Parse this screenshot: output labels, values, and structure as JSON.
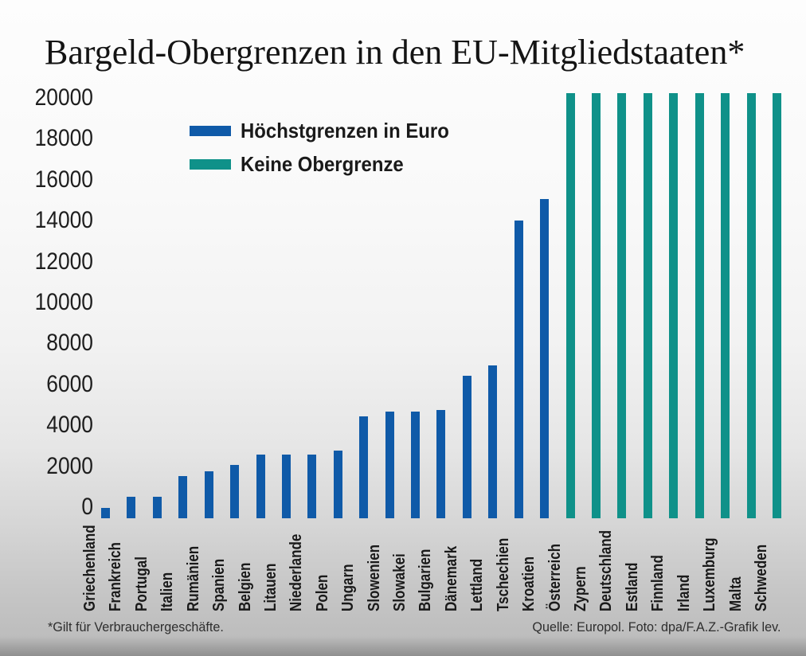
{
  "title": "Bargeld-Obergrenzen in den EU-Mitgliedstaaten*",
  "legend": [
    {
      "label": "Höchstgrenzen in Euro",
      "color": "#0f5aa8",
      "meaning": "limit"
    },
    {
      "label": "Keine Obergrenze",
      "color": "#0f9189",
      "meaning": "nolimit"
    }
  ],
  "footnote": "*Gilt für Verbrauchergeschäfte.",
  "source": "Quelle: Europol. Foto: dpa/F.A.Z.-Grafik lev.",
  "chart_data": {
    "type": "bar",
    "title": "Bargeld-Obergrenzen in den EU-Mitgliedstaaten*",
    "xlabel": "",
    "ylabel": "",
    "ylim": [
      0,
      20000
    ],
    "yticks": [
      0,
      2000,
      4000,
      6000,
      8000,
      10000,
      12000,
      14000,
      16000,
      18000,
      20000
    ],
    "grid": false,
    "legend_position": "top-left",
    "categories": [
      "Griechenland",
      "Frankreich",
      "Portugal",
      "Italien",
      "Rumänien",
      "Spanien",
      "Belgien",
      "Litauen",
      "Niederlande",
      "Polen",
      "Ungarn",
      "Slowenien",
      "Slowakei",
      "Bulgarien",
      "Dänemark",
      "Lettland",
      "Tschechien",
      "Kroatien",
      "Österreich",
      "Zypern",
      "Deutschland",
      "Estland",
      "Finnland",
      "Irland",
      "Luxemburg",
      "Malta",
      "Schweden"
    ],
    "values": [
      500,
      1000,
      1000,
      2000,
      2200,
      2500,
      3000,
      3000,
      3000,
      3200,
      4800,
      5000,
      5000,
      5100,
      6700,
      7200,
      14000,
      15000,
      20000,
      20000,
      20000,
      20000,
      20000,
      20000,
      20000,
      20000,
      20000
    ],
    "bar_type": [
      "limit",
      "limit",
      "limit",
      "limit",
      "limit",
      "limit",
      "limit",
      "limit",
      "limit",
      "limit",
      "limit",
      "limit",
      "limit",
      "limit",
      "limit",
      "limit",
      "limit",
      "limit",
      "nolimit",
      "nolimit",
      "nolimit",
      "nolimit",
      "nolimit",
      "nolimit",
      "nolimit",
      "nolimit",
      "nolimit"
    ],
    "colors": {
      "limit": "#0f5aa8",
      "nolimit": "#0f9189"
    },
    "nolimit_note": "teal bars are drawn to the top of the axis (no upper limit)"
  }
}
